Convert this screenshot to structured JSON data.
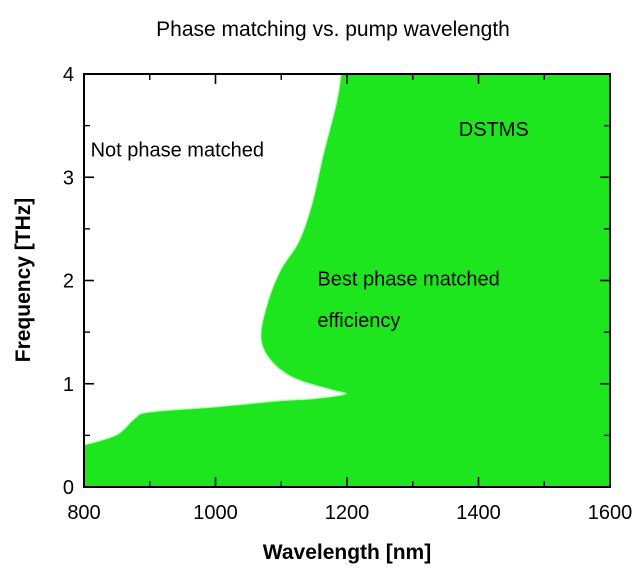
{
  "chart_data": {
    "type": "area",
    "title": "Phase matching vs. pump wavelength",
    "xlabel": "Wavelength [nm]",
    "ylabel": "Frequency [THz]",
    "xlim": [
      800,
      1600
    ],
    "ylim": [
      0,
      4
    ],
    "xticks": [
      800,
      1000,
      1200,
      1400,
      1600
    ],
    "xtick_labels": [
      "800",
      "1000",
      "1200",
      "1400",
      "1600"
    ],
    "yticks": [
      0,
      1,
      2,
      3,
      4
    ],
    "ytick_labels": [
      "0",
      "1",
      "2",
      "3",
      "4"
    ],
    "fill_color": "#1ee61e",
    "grid": false,
    "region_boundary": [
      {
        "x": 800,
        "y": 0.4
      },
      {
        "x": 850,
        "y": 0.5
      },
      {
        "x": 878,
        "y": 0.66
      },
      {
        "x": 900,
        "y": 0.72
      },
      {
        "x": 1000,
        "y": 0.77
      },
      {
        "x": 1100,
        "y": 0.83
      },
      {
        "x": 1150,
        "y": 0.85
      },
      {
        "x": 1200,
        "y": 0.9
      },
      {
        "x": 1175,
        "y": 0.95
      },
      {
        "x": 1120,
        "y": 1.06
      },
      {
        "x": 1085,
        "y": 1.23
      },
      {
        "x": 1070,
        "y": 1.45
      },
      {
        "x": 1080,
        "y": 1.78
      },
      {
        "x": 1100,
        "y": 2.1
      },
      {
        "x": 1128,
        "y": 2.38
      },
      {
        "x": 1148,
        "y": 2.75
      },
      {
        "x": 1165,
        "y": 3.22
      },
      {
        "x": 1185,
        "y": 3.72
      },
      {
        "x": 1192,
        "y": 4.0
      }
    ],
    "annotations": [
      {
        "text": "Not phase matched",
        "x": 810,
        "y": 3.2
      },
      {
        "text": "DSTMS",
        "x": 1370,
        "y": 3.4
      },
      {
        "text": "Best phase matched",
        "x": 1155,
        "y": 1.95
      },
      {
        "text": "efficiency",
        "x": 1155,
        "y": 1.55
      }
    ]
  }
}
